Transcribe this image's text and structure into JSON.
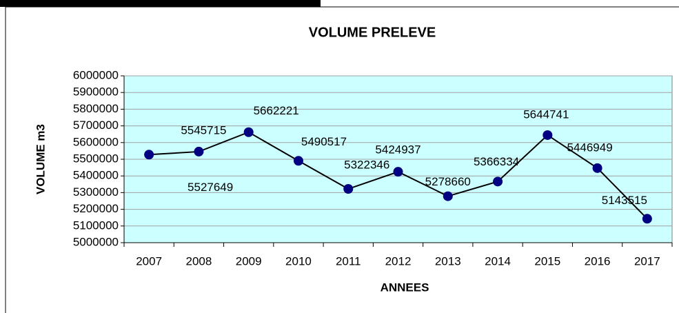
{
  "chart_data": {
    "type": "line",
    "title": "VOLUME PRELEVE",
    "x_label": "ANNEES",
    "y_label": "VOLUME m3",
    "categories": [
      "2007",
      "2008",
      "2009",
      "2010",
      "2011",
      "2012",
      "2013",
      "2014",
      "2015",
      "2016",
      "2017"
    ],
    "series": [
      {
        "name": "VOLUME PRELEVE",
        "color": "#000080",
        "values": [
          5527649,
          5545715,
          5662221,
          5490517,
          5322346,
          5424937,
          5278660,
          5366334,
          5644741,
          5446949,
          5143515
        ]
      }
    ],
    "ylim": [
      5000000,
      6000000
    ],
    "yticks": [
      5000000,
      5100000,
      5200000,
      5300000,
      5400000,
      5500000,
      5600000,
      5700000,
      5800000,
      5900000,
      6000000
    ],
    "grid": true,
    "plot_background": "#ccffff"
  }
}
